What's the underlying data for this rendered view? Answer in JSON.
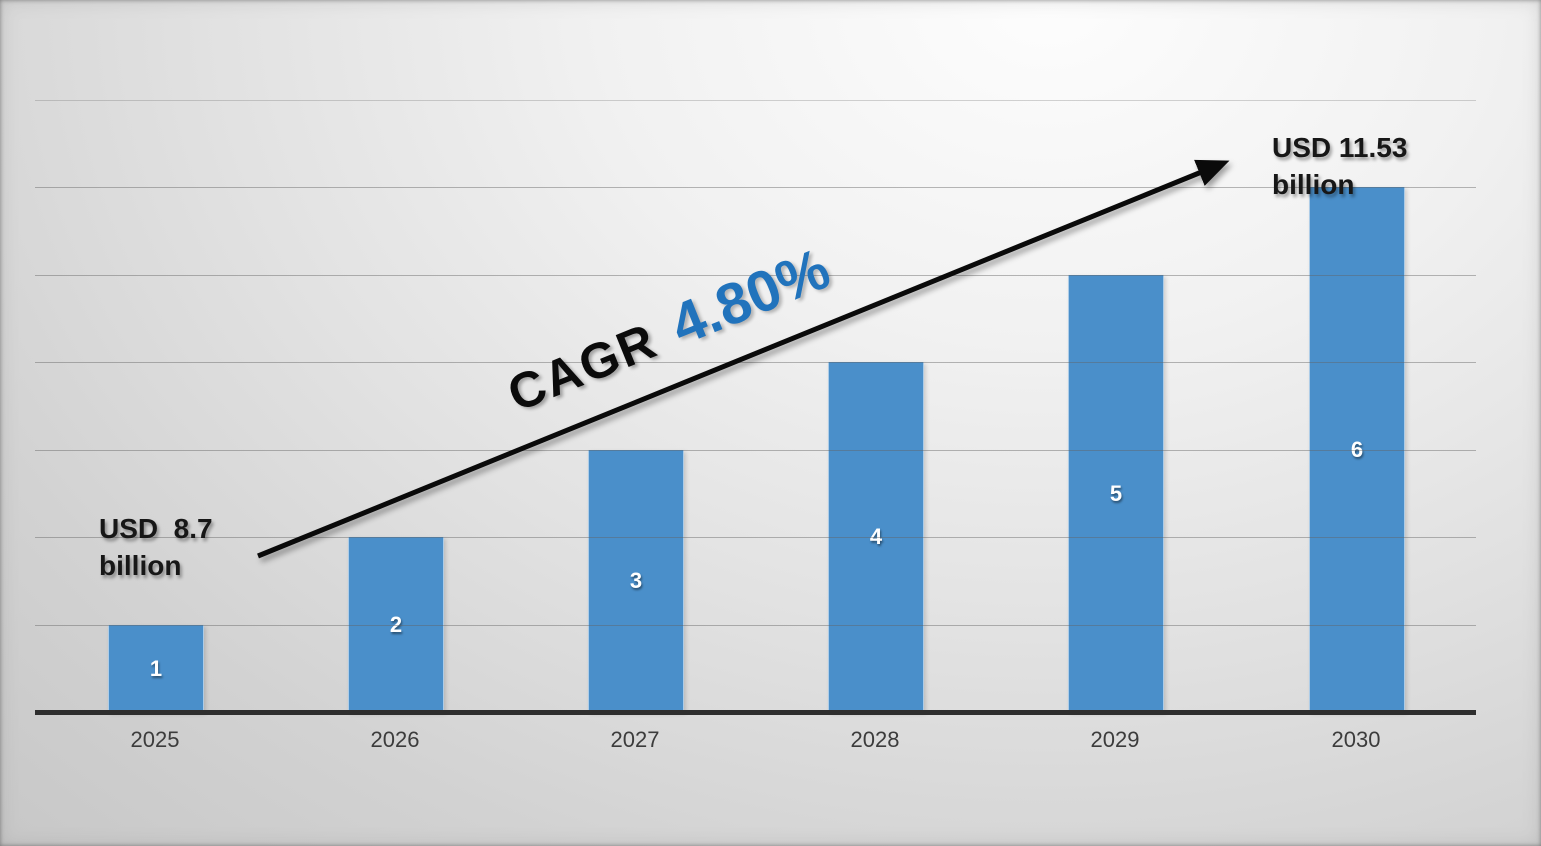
{
  "chart_data": {
    "type": "bar",
    "title": "",
    "categories": [
      "2025",
      "2026",
      "2027",
      "2028",
      "2029",
      "2030"
    ],
    "values": [
      1,
      2,
      3,
      4,
      5,
      6
    ],
    "bar_value_labels": [
      "1",
      "2",
      "3",
      "4",
      "5",
      "6"
    ],
    "ylim": [
      0,
      7
    ],
    "grid": "horizontal, 7 lines, drawn over bars",
    "legend": "none",
    "annotations": {
      "start_label_line1": "USD  8.7",
      "start_label_line2": "billion",
      "end_label_line1": "USD 11.53",
      "end_label_line2": "billion",
      "cagr_prefix": "CAGR",
      "cagr_value": "4.80%",
      "arrow": "black diagonal growth arrow from above 2025 bar to USD 11.53 billion label"
    }
  },
  "colors": {
    "bar": "#4A8FCA",
    "bar_value_text": "#FFFFFF",
    "x_tick_text": "#3C3C3C",
    "axis_line": "#2E2E2E",
    "gridline": "#8C8C8C",
    "annotation_text": "#171717",
    "cagr_prefix_text": "#0B0B0B",
    "cagr_value_text": "#2173BC",
    "arrow": "#0A0A0A"
  }
}
